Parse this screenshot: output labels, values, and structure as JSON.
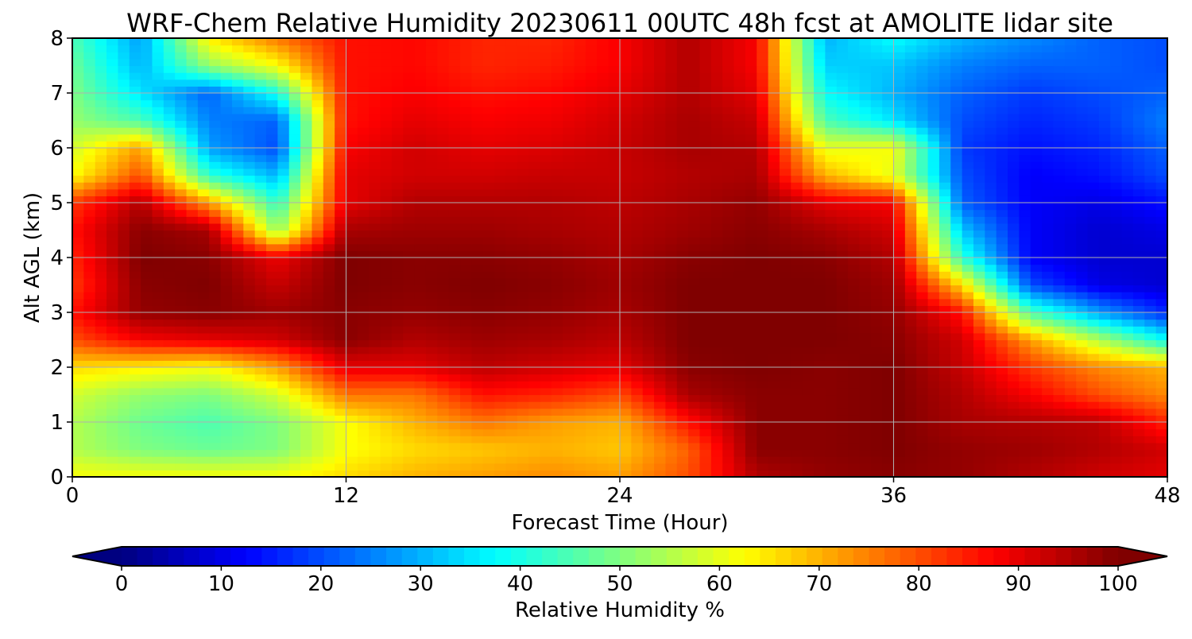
{
  "chart_data": {
    "type": "heatmap",
    "title": "WRF-Chem Relative Humidity 20230611 00UTC 48h fcst at AMOLITE lidar site",
    "xlabel": "Forecast Time (Hour)",
    "ylabel": "Alt AGL (km)",
    "xlim": [
      0,
      48
    ],
    "ylim": [
      0,
      8
    ],
    "xticks": [
      "0",
      "12",
      "24",
      "36",
      "48"
    ],
    "yticks": [
      "0",
      "1",
      "2",
      "3",
      "4",
      "5",
      "6",
      "7",
      "8"
    ],
    "grid": true,
    "colorbar": {
      "label": "Relative Humidity %",
      "range": [
        0,
        100
      ],
      "ticks": [
        "0",
        "10",
        "20",
        "30",
        "40",
        "50",
        "60",
        "70",
        "80",
        "90",
        "100"
      ],
      "colormap": "jet",
      "extend": "both"
    },
    "x": [
      0,
      3,
      6,
      9,
      12,
      15,
      18,
      21,
      24,
      27,
      30,
      33,
      36,
      39,
      42,
      45,
      48
    ],
    "y": [
      0,
      0.5,
      1,
      1.5,
      2,
      2.5,
      3,
      3.5,
      4,
      4.5,
      5,
      5.5,
      6,
      6.5,
      7,
      7.5,
      8
    ],
    "z": [
      [
        62,
        62,
        62,
        62,
        66,
        70,
        72,
        74,
        72,
        80,
        95,
        98,
        99,
        98,
        95,
        92,
        90
      ],
      [
        55,
        50,
        48,
        50,
        62,
        66,
        68,
        70,
        68,
        78,
        99,
        99,
        100,
        98,
        97,
        95,
        92
      ],
      [
        55,
        48,
        45,
        50,
        62,
        70,
        76,
        72,
        70,
        86,
        99,
        99,
        100,
        96,
        95,
        94,
        84
      ],
      [
        58,
        52,
        50,
        58,
        76,
        76,
        86,
        84,
        80,
        96,
        99,
        99,
        100,
        95,
        88,
        80,
        74
      ],
      [
        66,
        64,
        62,
        72,
        90,
        90,
        94,
        92,
        90,
        99,
        100,
        99,
        100,
        93,
        82,
        74,
        70
      ],
      [
        80,
        88,
        90,
        92,
        99,
        95,
        97,
        96,
        94,
        100,
        100,
        100,
        99,
        92,
        72,
        55,
        38
      ],
      [
        86,
        98,
        99,
        97,
        99,
        98,
        99,
        98,
        96,
        100,
        100,
        100,
        98,
        86,
        45,
        28,
        16
      ],
      [
        82,
        99,
        100,
        93,
        100,
        99,
        100,
        99,
        97,
        100,
        100,
        100,
        97,
        66,
        20,
        10,
        8
      ],
      [
        84,
        100,
        99,
        89,
        100,
        99,
        99,
        98,
        96,
        99,
        100,
        99,
        95,
        42,
        12,
        8,
        8
      ],
      [
        86,
        99,
        96,
        52,
        96,
        97,
        97,
        96,
        95,
        97,
        99,
        96,
        92,
        32,
        12,
        8,
        10
      ],
      [
        82,
        95,
        72,
        42,
        90,
        95,
        95,
        95,
        94,
        96,
        98,
        90,
        88,
        22,
        12,
        10,
        14
      ],
      [
        62,
        80,
        42,
        30,
        90,
        92,
        92,
        93,
        93,
        95,
        96,
        70,
        60,
        20,
        12,
        14,
        20
      ],
      [
        58,
        72,
        28,
        20,
        88,
        92,
        90,
        91,
        93,
        96,
        95,
        60,
        62,
        18,
        14,
        16,
        22
      ],
      [
        52,
        45,
        25,
        22,
        86,
        90,
        88,
        89,
        92,
        96,
        93,
        45,
        35,
        20,
        16,
        18,
        25
      ],
      [
        50,
        35,
        22,
        40,
        86,
        88,
        86,
        87,
        90,
        95,
        90,
        38,
        30,
        22,
        18,
        20,
        22
      ],
      [
        48,
        30,
        52,
        62,
        86,
        87,
        84,
        85,
        88,
        95,
        88,
        33,
        32,
        25,
        22,
        22,
        20
      ],
      [
        45,
        28,
        64,
        76,
        86,
        87,
        84,
        84,
        88,
        95,
        88,
        30,
        38,
        30,
        26,
        22,
        20
      ]
    ]
  }
}
